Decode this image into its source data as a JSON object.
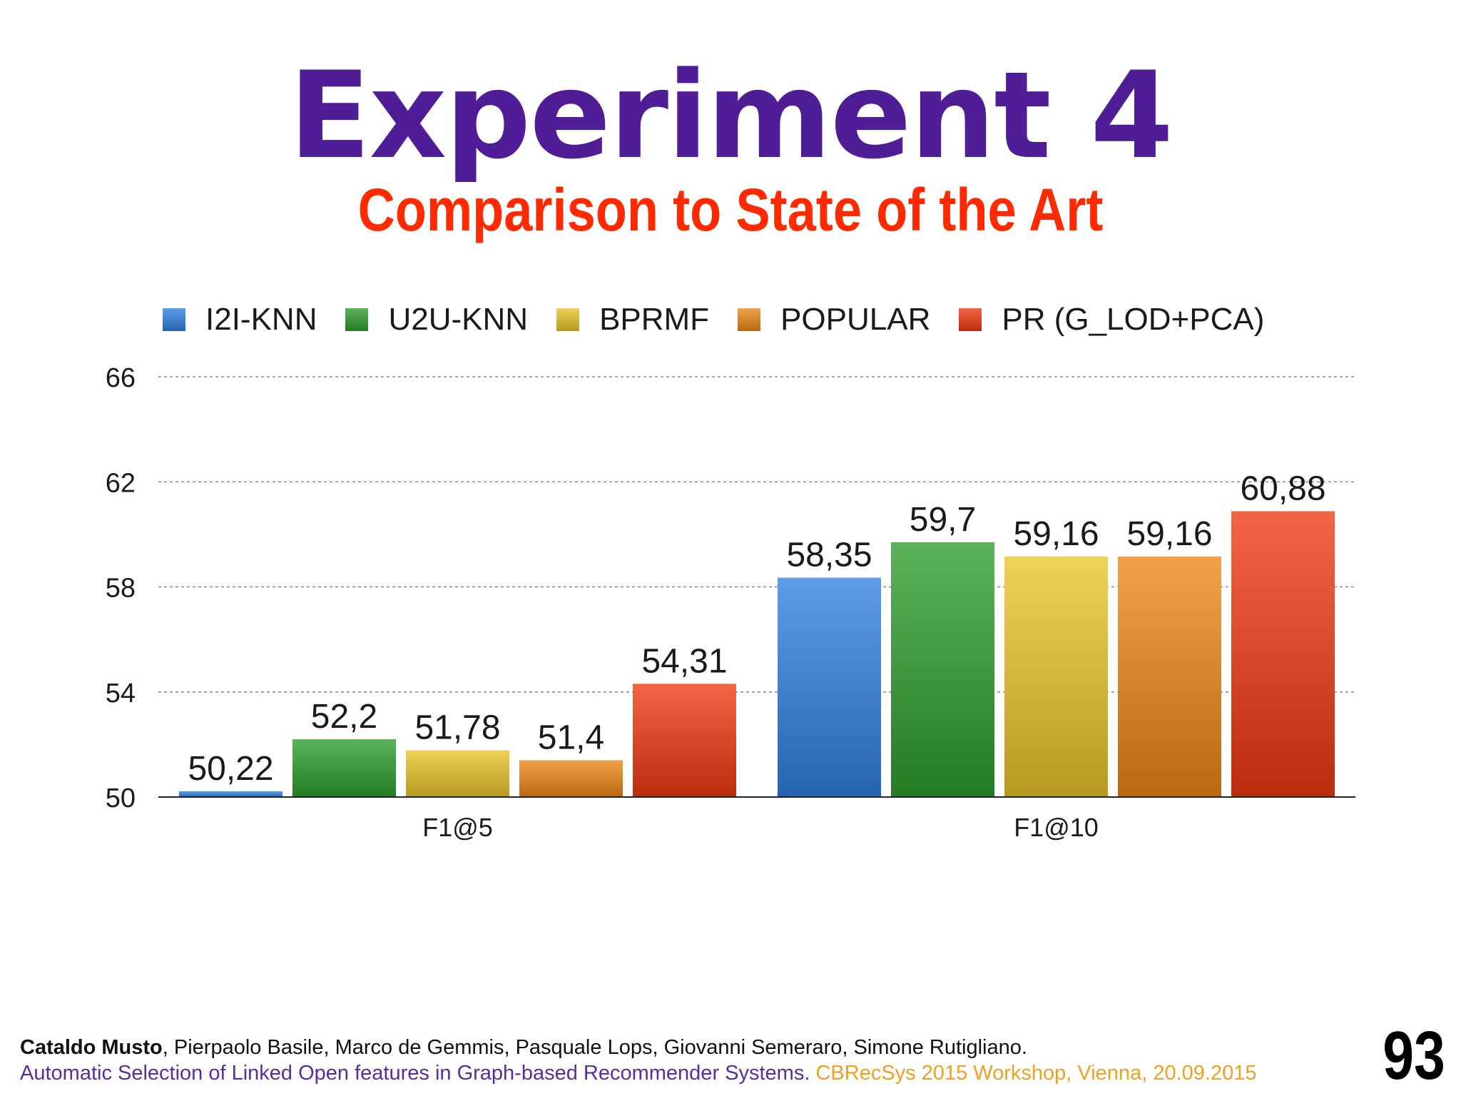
{
  "slide": {
    "title": "Experiment 4",
    "subtitle": "Comparison to State of the Art",
    "page_number": "93"
  },
  "footer": {
    "lead_author": "Cataldo Musto",
    "other_authors": ", Pierpaolo Basile, Marco de Gemmis, Pasquale Lops, Giovanni Semeraro, Simone Rutigliano.",
    "paper_title": "Automatic Selection of Linked Open features in Graph-based Recommender Systems.",
    "venue": " CBRecSys 2015 Workshop, Vienna, 20.09.2015"
  },
  "chart_data": {
    "type": "bar",
    "categories": [
      "F1@5",
      "F1@10"
    ],
    "series": [
      {
        "name": "I2I-KNN",
        "values": [
          50.22,
          58.35
        ],
        "labels": [
          "50,22",
          "58,35"
        ],
        "color": "#2f80df"
      },
      {
        "name": "U2U-KNN",
        "values": [
          52.2,
          59.7
        ],
        "labels": [
          "52,2",
          "59,7"
        ],
        "color": "#2e9e2e"
      },
      {
        "name": "BPRMF",
        "values": [
          51.78,
          59.16
        ],
        "labels": [
          "51,78",
          "59,16"
        ],
        "color": "#e8c42a"
      },
      {
        "name": "POPULAR",
        "values": [
          51.4,
          59.16
        ],
        "labels": [
          "51,4",
          "59,16"
        ],
        "color": "#ee8618"
      },
      {
        "name": "PR (G_LOD+PCA)",
        "values": [
          54.31,
          60.88
        ],
        "labels": [
          "54,31",
          "60,88"
        ],
        "color": "#ee3a10"
      }
    ],
    "ylim": [
      50,
      66
    ],
    "yticks": [
      "50",
      "54",
      "58",
      "62",
      "66"
    ],
    "grid": true,
    "legend": "top"
  }
}
